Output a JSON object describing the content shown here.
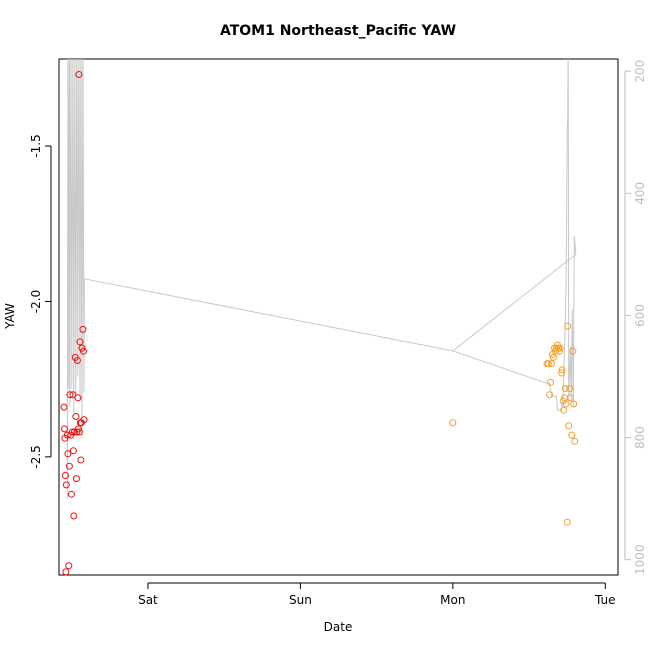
{
  "chart_data": {
    "type": "scatter",
    "title": "ATOM1 Northeast_Pacific YAW",
    "xlabel": "Date",
    "ylabel": "YAW",
    "x_axis": {
      "kind": "date",
      "range": [
        "2023-12-01T10:00",
        "2023-12-05T02:00"
      ],
      "ticks": [
        {
          "value": "2023-12-02T00:00",
          "label": "Sat"
        },
        {
          "value": "2023-12-03T00:00",
          "label": "Sun"
        },
        {
          "value": "2023-12-04T00:00",
          "label": "Mon"
        },
        {
          "value": "2023-12-05T00:00",
          "label": "Tue"
        }
      ]
    },
    "y_axis": {
      "range": [
        -2.88,
        -1.22
      ],
      "ticks": [
        {
          "value": -1.5,
          "label": "-1.5"
        },
        {
          "value": -2.0,
          "label": "-2.0"
        },
        {
          "value": -2.5,
          "label": "-2.5"
        }
      ]
    },
    "y2_axis": {
      "range": [
        1025,
        180
      ],
      "ticks": [
        {
          "value": 200,
          "label": "200"
        },
        {
          "value": 400,
          "label": "400"
        },
        {
          "value": 600,
          "label": "600"
        },
        {
          "value": 800,
          "label": "800"
        },
        {
          "value": 1000,
          "label": "1000"
        }
      ]
    },
    "grid": false,
    "legend": "none",
    "colors": {
      "series_a": "#ee1111",
      "series_b": "#f4a030",
      "line": "#c8c8c8",
      "axis": "#000000",
      "right_axis": "#bebebe"
    },
    "series": [
      {
        "color": "#ee1111",
        "marker": "open-circle",
        "points": [
          [
            "2023-12-01T10:47",
            -2.34
          ],
          [
            "2023-12-01T10:52",
            -2.41
          ],
          [
            "2023-12-01T10:56",
            -2.44
          ],
          [
            "2023-12-01T11:00",
            -2.56
          ],
          [
            "2023-12-01T11:05",
            -2.87
          ],
          [
            "2023-12-01T11:09",
            -2.59
          ],
          [
            "2023-12-01T11:19",
            -2.43
          ],
          [
            "2023-12-01T11:24",
            -2.49
          ],
          [
            "2023-12-01T11:33",
            -2.85
          ],
          [
            "2023-12-01T11:38",
            -2.53
          ],
          [
            "2023-12-01T11:43",
            -2.3
          ],
          [
            "2023-12-01T11:52",
            -2.43
          ],
          [
            "2023-12-01T11:57",
            -2.62
          ],
          [
            "2023-12-01T12:06",
            -2.42
          ],
          [
            "2023-12-01T12:11",
            -2.3
          ],
          [
            "2023-12-01T12:16",
            -2.48
          ],
          [
            "2023-12-01T12:20",
            -2.69
          ],
          [
            "2023-12-01T12:25",
            -2.42
          ],
          [
            "2023-12-01T12:34",
            -2.18
          ],
          [
            "2023-12-01T12:39",
            -2.37
          ],
          [
            "2023-12-01T12:44",
            -2.57
          ],
          [
            "2023-12-01T12:49",
            -2.42
          ],
          [
            "2023-12-01T12:54",
            -2.19
          ],
          [
            "2023-12-01T12:59",
            -2.31
          ],
          [
            "2023-12-01T13:03",
            -2.41
          ],
          [
            "2023-12-01T13:08",
            -1.27
          ],
          [
            "2023-12-01T13:13",
            -2.42
          ],
          [
            "2023-12-01T13:18",
            -2.13
          ],
          [
            "2023-12-01T13:22",
            -2.39
          ],
          [
            "2023-12-01T13:27",
            -2.51
          ],
          [
            "2023-12-01T13:32",
            -2.39
          ],
          [
            "2023-12-01T13:37",
            -2.15
          ],
          [
            "2023-12-01T13:46",
            -2.09
          ],
          [
            "2023-12-01T13:51",
            -2.16
          ],
          [
            "2023-12-01T13:56",
            -2.38
          ]
        ]
      },
      {
        "color": "#f4a030",
        "marker": "open-circle",
        "points": [
          [
            "2023-12-04T00:00",
            -2.39
          ],
          [
            "2023-12-04T14:49",
            -2.2
          ],
          [
            "2023-12-04T15:03",
            -2.2
          ],
          [
            "2023-12-04T15:13",
            -2.3
          ],
          [
            "2023-12-04T15:22",
            -2.26
          ],
          [
            "2023-12-04T15:32",
            -2.2
          ],
          [
            "2023-12-04T15:41",
            -2.17
          ],
          [
            "2023-12-04T15:51",
            -2.18
          ],
          [
            "2023-12-04T16:00",
            -2.15
          ],
          [
            "2023-12-04T16:10",
            -2.16
          ],
          [
            "2023-12-04T16:19",
            -2.15
          ],
          [
            "2023-12-04T16:29",
            -2.14
          ],
          [
            "2023-12-04T16:38",
            -2.15
          ],
          [
            "2023-12-04T16:48",
            -2.16
          ],
          [
            "2023-12-04T16:53",
            -2.15
          ],
          [
            "2023-12-04T17:07",
            -2.23
          ],
          [
            "2023-12-04T17:12",
            -2.22
          ],
          [
            "2023-12-04T17:22",
            -2.32
          ],
          [
            "2023-12-04T17:26",
            -2.35
          ],
          [
            "2023-12-04T17:36",
            -2.31
          ],
          [
            "2023-12-04T17:41",
            -2.28
          ],
          [
            "2023-12-04T17:50",
            -2.33
          ],
          [
            "2023-12-04T18:00",
            -2.71
          ],
          [
            "2023-12-04T18:05",
            -2.08
          ],
          [
            "2023-12-04T18:14",
            -2.4
          ],
          [
            "2023-12-04T18:24",
            -2.28
          ],
          [
            "2023-12-04T18:29",
            -2.31
          ],
          [
            "2023-12-04T18:43",
            -2.43
          ],
          [
            "2023-12-04T18:53",
            -2.16
          ],
          [
            "2023-12-04T19:02",
            -2.33
          ],
          [
            "2023-12-04T19:12",
            -2.45
          ]
        ]
      }
    ],
    "right_axis_line": {
      "color": "#c8c8c8",
      "axis": "right",
      "points": [
        [
          "2023-12-01T11:19",
          900
        ],
        [
          "2023-12-01T11:24",
          120
        ],
        [
          "2023-12-01T11:33",
          720
        ],
        [
          "2023-12-01T11:38",
          120
        ],
        [
          "2023-12-01T11:43",
          750
        ],
        [
          "2023-12-01T11:52",
          120
        ],
        [
          "2023-12-01T12:01",
          720
        ],
        [
          "2023-12-01T12:11",
          120
        ],
        [
          "2023-12-01T12:20",
          760
        ],
        [
          "2023-12-01T12:30",
          120
        ],
        [
          "2023-12-01T12:39",
          730
        ],
        [
          "2023-12-01T12:49",
          120
        ],
        [
          "2023-12-01T12:58",
          700
        ],
        [
          "2023-12-01T13:08",
          120
        ],
        [
          "2023-12-01T13:18",
          740
        ],
        [
          "2023-12-01T13:27",
          120
        ],
        [
          "2023-12-01T13:37",
          800
        ],
        [
          "2023-12-01T13:46",
          120
        ],
        [
          "2023-12-01T13:56",
          725
        ],
        [
          "2023-12-01T14:00",
          540
        ],
        [
          "2023-12-04T00:00",
          658
        ],
        [
          "2023-12-04T14:49",
          711
        ],
        [
          "2023-12-04T15:13",
          711
        ],
        [
          "2023-12-04T15:32",
          732
        ],
        [
          "2023-12-04T16:19",
          732
        ],
        [
          "2023-12-04T16:29",
          755
        ],
        [
          "2023-12-04T17:07",
          755
        ],
        [
          "2023-12-04T17:22",
          730
        ],
        [
          "2023-12-04T17:36",
          650
        ],
        [
          "2023-12-04T17:50",
          550
        ],
        [
          "2023-12-04T18:00",
          300
        ],
        [
          "2023-12-04T18:05",
          280
        ],
        [
          "2023-12-04T18:10",
          120
        ],
        [
          "2023-12-04T18:14",
          740
        ],
        [
          "2023-12-04T18:29",
          650
        ],
        [
          "2023-12-04T18:38",
          740
        ],
        [
          "2023-12-04T18:48",
          590
        ],
        [
          "2023-12-04T18:58",
          750
        ],
        [
          "2023-12-04T19:07",
          470
        ],
        [
          "2023-12-04T19:21",
          500
        ],
        [
          "2023-12-04T00:00",
          658
        ]
      ]
    }
  }
}
